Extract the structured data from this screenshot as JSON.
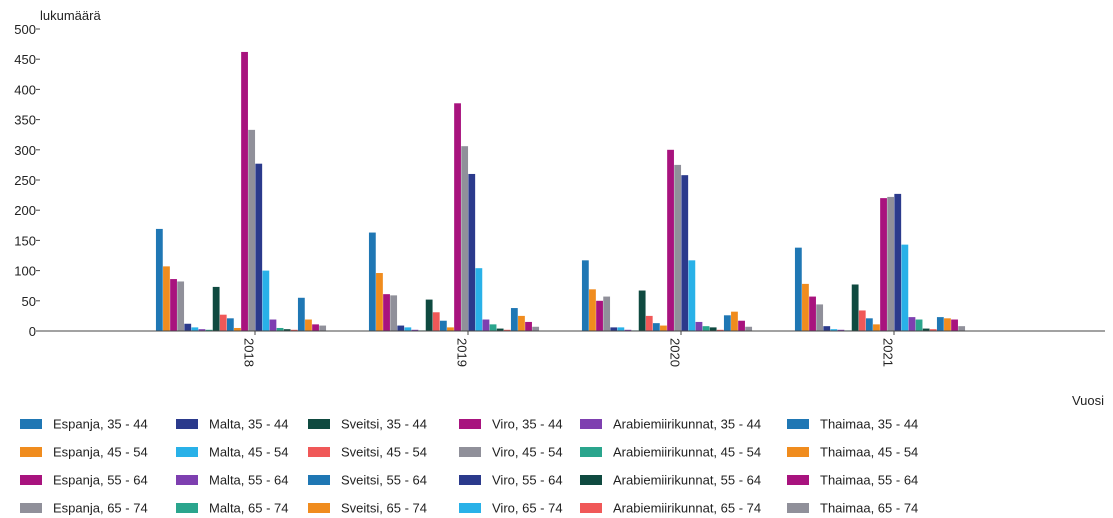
{
  "chart_data": {
    "type": "bar",
    "ylabel": "lukumäärä",
    "xlabel": "Vuosi",
    "categories": [
      "2018",
      "2019",
      "2020",
      "2021"
    ],
    "ylim": [
      0,
      500
    ],
    "yticks": [
      0,
      50,
      100,
      150,
      200,
      250,
      300,
      350,
      400,
      450,
      500
    ],
    "grid": false,
    "legend_position": "bottom",
    "series": [
      {
        "name": "Espanja, 35 - 44",
        "color": "#1f77b4",
        "values": [
          169,
          163,
          117,
          138
        ]
      },
      {
        "name": "Espanja, 45 - 54",
        "color": "#f08c1e",
        "values": [
          107,
          96,
          69,
          78
        ]
      },
      {
        "name": "Espanja, 55 - 64",
        "color": "#a8137e",
        "values": [
          86,
          61,
          50,
          57
        ]
      },
      {
        "name": "Espanja, 65 - 74",
        "color": "#90909a",
        "values": [
          82,
          59,
          57,
          44
        ]
      },
      {
        "name": "Malta, 35 - 44",
        "color": "#2b3a8c",
        "values": [
          12,
          9,
          6,
          8
        ]
      },
      {
        "name": "Malta, 45 - 54",
        "color": "#29b1e8",
        "values": [
          6,
          6,
          6,
          3
        ]
      },
      {
        "name": "Malta, 55 - 64",
        "color": "#7e3fb0",
        "values": [
          3,
          2,
          2,
          2
        ]
      },
      {
        "name": "Malta, 65 - 74",
        "color": "#2aa58d",
        "values": [
          2,
          1,
          1,
          1
        ]
      },
      {
        "name": "Sveitsi, 35 - 44",
        "color": "#0f4a40",
        "values": [
          73,
          52,
          67,
          77
        ]
      },
      {
        "name": "Sveitsi, 45 - 54",
        "color": "#f05858",
        "values": [
          27,
          31,
          25,
          34
        ]
      },
      {
        "name": "Sveitsi, 55 - 64",
        "color": "#1f77b4",
        "values": [
          21,
          17,
          13,
          21
        ]
      },
      {
        "name": "Sveitsi, 65 - 74",
        "color": "#f08c1e",
        "values": [
          5,
          6,
          9,
          11
        ]
      },
      {
        "name": "Viro, 35 - 44",
        "color": "#a8137e",
        "values": [
          462,
          377,
          300,
          220
        ]
      },
      {
        "name": "Viro, 45 - 54",
        "color": "#90909a",
        "values": [
          333,
          306,
          275,
          222
        ]
      },
      {
        "name": "Viro, 55 - 64",
        "color": "#2b3a8c",
        "values": [
          277,
          260,
          258,
          227
        ]
      },
      {
        "name": "Viro, 65 - 74",
        "color": "#29b1e8",
        "values": [
          100,
          104,
          117,
          143
        ]
      },
      {
        "name": "Arabiemiirikunnat, 35 - 44",
        "color": "#7e3fb0",
        "values": [
          19,
          19,
          15,
          23
        ]
      },
      {
        "name": "Arabiemiirikunnat, 45 - 54",
        "color": "#2aa58d",
        "values": [
          5,
          11,
          8,
          19
        ]
      },
      {
        "name": "Arabiemiirikunnat, 55 - 64",
        "color": "#0f4a40",
        "values": [
          3,
          4,
          6,
          4
        ]
      },
      {
        "name": "Arabiemiirikunnat, 65 - 74",
        "color": "#f05858",
        "values": [
          2,
          2,
          2,
          3
        ]
      },
      {
        "name": "Thaimaa, 35 - 44",
        "color": "#1f77b4",
        "values": [
          55,
          38,
          26,
          23
        ]
      },
      {
        "name": "Thaimaa, 45 - 54",
        "color": "#f08c1e",
        "values": [
          19,
          25,
          32,
          21
        ]
      },
      {
        "name": "Thaimaa, 55 - 64",
        "color": "#a8137e",
        "values": [
          11,
          15,
          17,
          19
        ]
      },
      {
        "name": "Thaimaa, 65 - 74",
        "color": "#90909a",
        "values": [
          9,
          7,
          7,
          8
        ]
      }
    ]
  }
}
